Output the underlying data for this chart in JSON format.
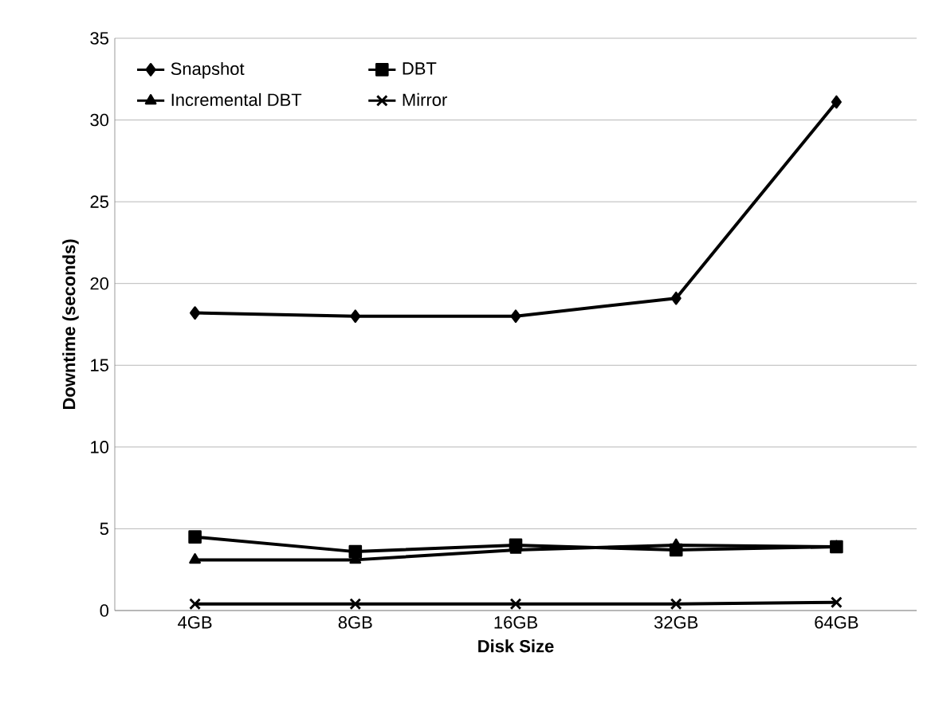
{
  "chart_data": {
    "type": "line",
    "xlabel": "Disk Size",
    "ylabel": "Downtime (seconds)",
    "categories": [
      "4GB",
      "8GB",
      "16GB",
      "32GB",
      "64GB"
    ],
    "series": [
      {
        "name": "Snapshot",
        "color": "#000000",
        "marker": "diamond",
        "values": [
          18.2,
          18.0,
          18.0,
          19.1,
          31.1
        ]
      },
      {
        "name": "DBT",
        "color": "#000000",
        "marker": "square",
        "values": [
          4.5,
          3.6,
          4.0,
          3.7,
          3.9
        ]
      },
      {
        "name": "Incremental DBT",
        "color": "#000000",
        "marker": "triangle",
        "values": [
          3.1,
          3.1,
          3.7,
          4.0,
          3.9
        ]
      },
      {
        "name": "Mirror",
        "color": "#000000",
        "marker": "cross",
        "values": [
          0.4,
          0.4,
          0.4,
          0.4,
          0.5
        ]
      }
    ],
    "ylim": [
      0,
      35
    ],
    "yticks": [
      0,
      5,
      10,
      15,
      20,
      25,
      30,
      35
    ],
    "grid": "y",
    "legend": "top left",
    "line_style": "solid"
  }
}
